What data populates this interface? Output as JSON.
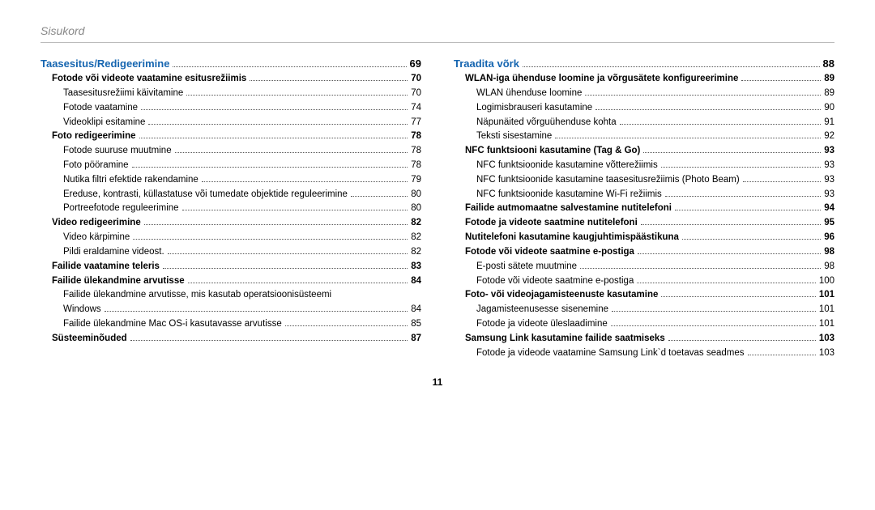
{
  "header": "Sisukord",
  "page_number": "11",
  "colors": {
    "link": "#1565b0",
    "header_text": "#888888",
    "rule": "#bbbbbb"
  },
  "left": [
    {
      "type": "section",
      "label": "Taasesitus/Redigeerimine",
      "page": "69"
    },
    {
      "type": "entry",
      "indent": 1,
      "label": "Fotode või videote vaatamine esitusrežiimis",
      "page": "70"
    },
    {
      "type": "sub",
      "indent": 2,
      "label": "Taasesitusrežiimi käivitamine",
      "page": "70"
    },
    {
      "type": "sub",
      "indent": 2,
      "label": "Fotode vaatamine",
      "page": "74"
    },
    {
      "type": "sub",
      "indent": 2,
      "label": "Videoklipi esitamine",
      "page": "77"
    },
    {
      "type": "entry",
      "indent": 1,
      "label": "Foto redigeerimine",
      "page": "78"
    },
    {
      "type": "sub",
      "indent": 2,
      "label": "Fotode suuruse muutmine",
      "page": "78"
    },
    {
      "type": "sub",
      "indent": 2,
      "label": "Foto pööramine",
      "page": "78"
    },
    {
      "type": "sub",
      "indent": 2,
      "label": "Nutika filtri efektide rakendamine",
      "page": "79"
    },
    {
      "type": "sub",
      "indent": 2,
      "label": "Ereduse, kontrasti, küllastatuse või tumedate objektide reguleerimine",
      "page": "80"
    },
    {
      "type": "sub",
      "indent": 2,
      "label": "Portreefotode reguleerimine",
      "page": "80"
    },
    {
      "type": "entry",
      "indent": 1,
      "label": "Video redigeerimine",
      "page": "82"
    },
    {
      "type": "sub",
      "indent": 2,
      "label": "Video kärpimine",
      "page": "82"
    },
    {
      "type": "sub",
      "indent": 2,
      "label": "Pildi eraldamine videost.",
      "page": "82"
    },
    {
      "type": "entry",
      "indent": 1,
      "label": "Failide vaatamine teleris",
      "page": "83"
    },
    {
      "type": "entry",
      "indent": 1,
      "label": "Failide ülekandmine arvutisse",
      "page": "84"
    },
    {
      "type": "cont",
      "indent": 2,
      "label": "Failide ülekandmine arvutisse, mis kasutab operatsioonisüsteemi"
    },
    {
      "type": "sub",
      "indent": 2,
      "label": "Windows",
      "page": "84"
    },
    {
      "type": "sub",
      "indent": 2,
      "label": "Failide ülekandmine Mac OS-i kasutavasse arvutisse",
      "page": "85"
    },
    {
      "type": "entry",
      "indent": 1,
      "label": "Süsteeminõuded",
      "page": "87"
    }
  ],
  "right": [
    {
      "type": "section",
      "label": "Traadita võrk",
      "page": "88"
    },
    {
      "type": "entry",
      "indent": 1,
      "label": "WLAN-iga ühenduse loomine ja võrgusätete konfigureerimine",
      "page": "89"
    },
    {
      "type": "sub",
      "indent": 2,
      "label": "WLAN ühenduse loomine",
      "page": "89"
    },
    {
      "type": "sub",
      "indent": 2,
      "label": "Logimisbrauseri kasutamine",
      "page": "90"
    },
    {
      "type": "sub",
      "indent": 2,
      "label": "Näpunäited võrguühenduse kohta",
      "page": "91"
    },
    {
      "type": "sub",
      "indent": 2,
      "label": "Teksti sisestamine",
      "page": "92"
    },
    {
      "type": "entry",
      "indent": 1,
      "label": "NFC funktsiooni kasutamine (Tag & Go)",
      "page": "93"
    },
    {
      "type": "sub",
      "indent": 2,
      "label": "NFC funktsioonide kasutamine võtterežiimis",
      "page": "93"
    },
    {
      "type": "sub",
      "indent": 2,
      "label": "NFC funktsioonide kasutamine taasesitusrežiimis (Photo Beam)",
      "page": "93"
    },
    {
      "type": "sub",
      "indent": 2,
      "label": "NFC funktsioonide kasutamine Wi-Fi režiimis",
      "page": "93"
    },
    {
      "type": "entry",
      "indent": 1,
      "label": "Failide autmomaatne salvestamine nutitelefoni",
      "page": "94"
    },
    {
      "type": "entry",
      "indent": 1,
      "label": "Fotode ja videote saatmine nutitelefoni",
      "page": "95"
    },
    {
      "type": "entry",
      "indent": 1,
      "label": "Nutitelefoni kasutamine kaugjuhtimispäästikuna",
      "page": "96"
    },
    {
      "type": "entry",
      "indent": 1,
      "label": "Fotode või videote saatmine e-postiga",
      "page": "98"
    },
    {
      "type": "sub",
      "indent": 2,
      "label": "E-posti sätete muutmine",
      "page": "98"
    },
    {
      "type": "sub",
      "indent": 2,
      "label": "Fotode või videote saatmine e-postiga",
      "page": "100"
    },
    {
      "type": "entry",
      "indent": 1,
      "label": "Foto- või videojagamisteenuste kasutamine",
      "page": "101"
    },
    {
      "type": "sub",
      "indent": 2,
      "label": "Jagamisteenusesse sisenemine",
      "page": "101"
    },
    {
      "type": "sub",
      "indent": 2,
      "label": "Fotode ja videote üleslaadimine",
      "page": "101"
    },
    {
      "type": "entry",
      "indent": 1,
      "label": "Samsung Link kasutamine failide saatmiseks",
      "page": "103"
    },
    {
      "type": "sub",
      "indent": 2,
      "label": "Fotode ja videode vaatamine Samsung Link`d toetavas seadmes",
      "page": "103"
    }
  ]
}
